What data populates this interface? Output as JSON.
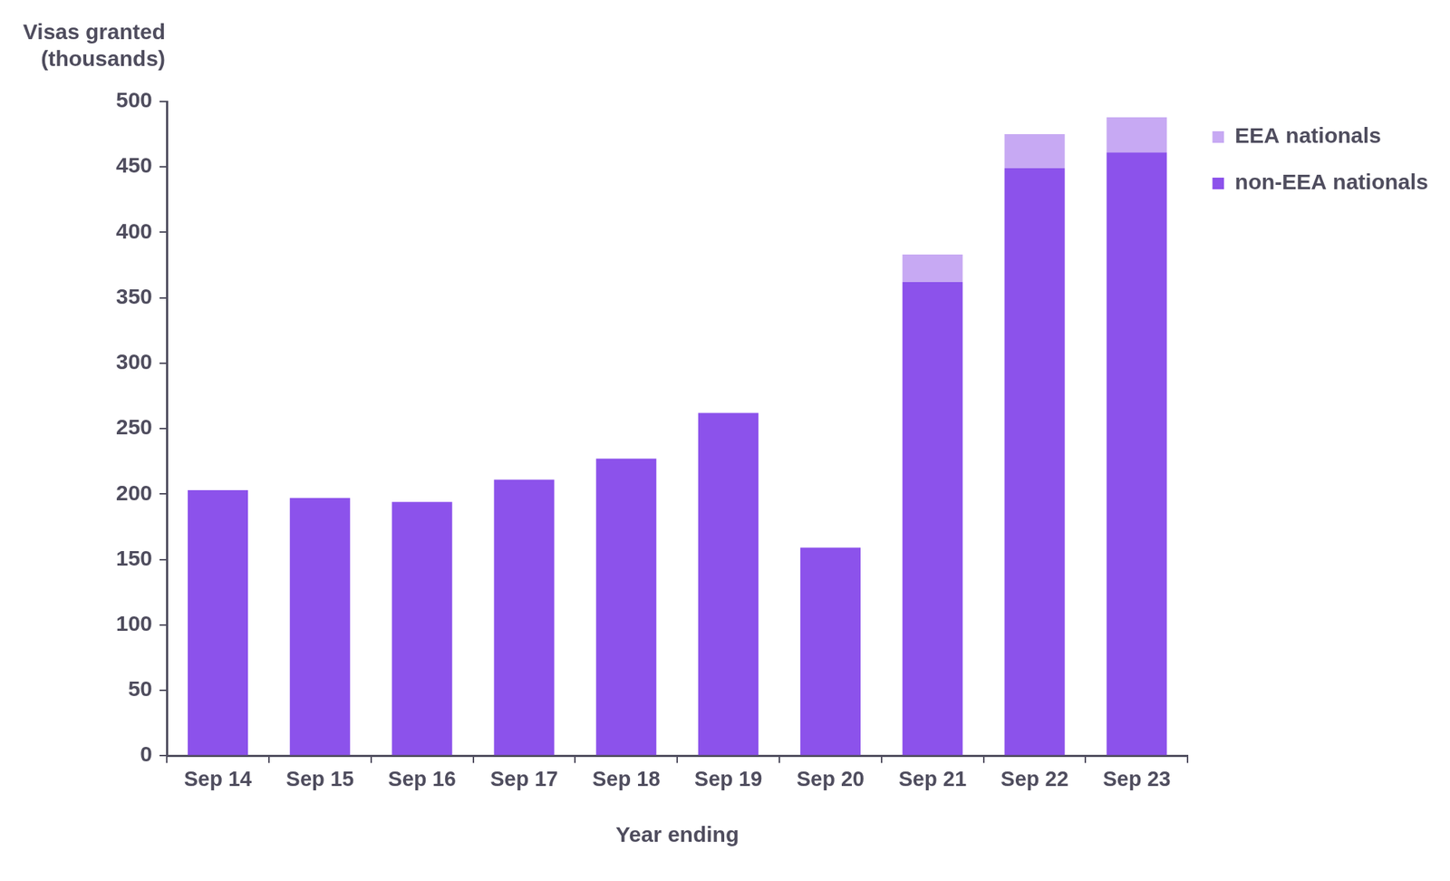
{
  "chart_data": {
    "type": "bar",
    "stacked": true,
    "y_label": [
      "Visas granted",
      "(thousands)"
    ],
    "x_label": "Year ending",
    "categories": [
      "Sep 14",
      "Sep 15",
      "Sep 16",
      "Sep 17",
      "Sep 18",
      "Sep 19",
      "Sep 20",
      "Sep 21",
      "Sep 22",
      "Sep 23"
    ],
    "series": [
      {
        "name": "non-EEA nationals",
        "color": "#8c52eb",
        "values": [
          203,
          197,
          194,
          211,
          227,
          262,
          159,
          362,
          449,
          461
        ]
      },
      {
        "name": "EEA nationals",
        "color": "#c7a9f3",
        "values": [
          null,
          null,
          null,
          null,
          null,
          null,
          null,
          21,
          26,
          27
        ]
      }
    ],
    "ylim": [
      0,
      500
    ],
    "yticks": [
      0,
      50,
      100,
      150,
      200,
      250,
      300,
      350,
      400,
      450,
      500
    ],
    "grid": false,
    "legend": "upper right"
  }
}
